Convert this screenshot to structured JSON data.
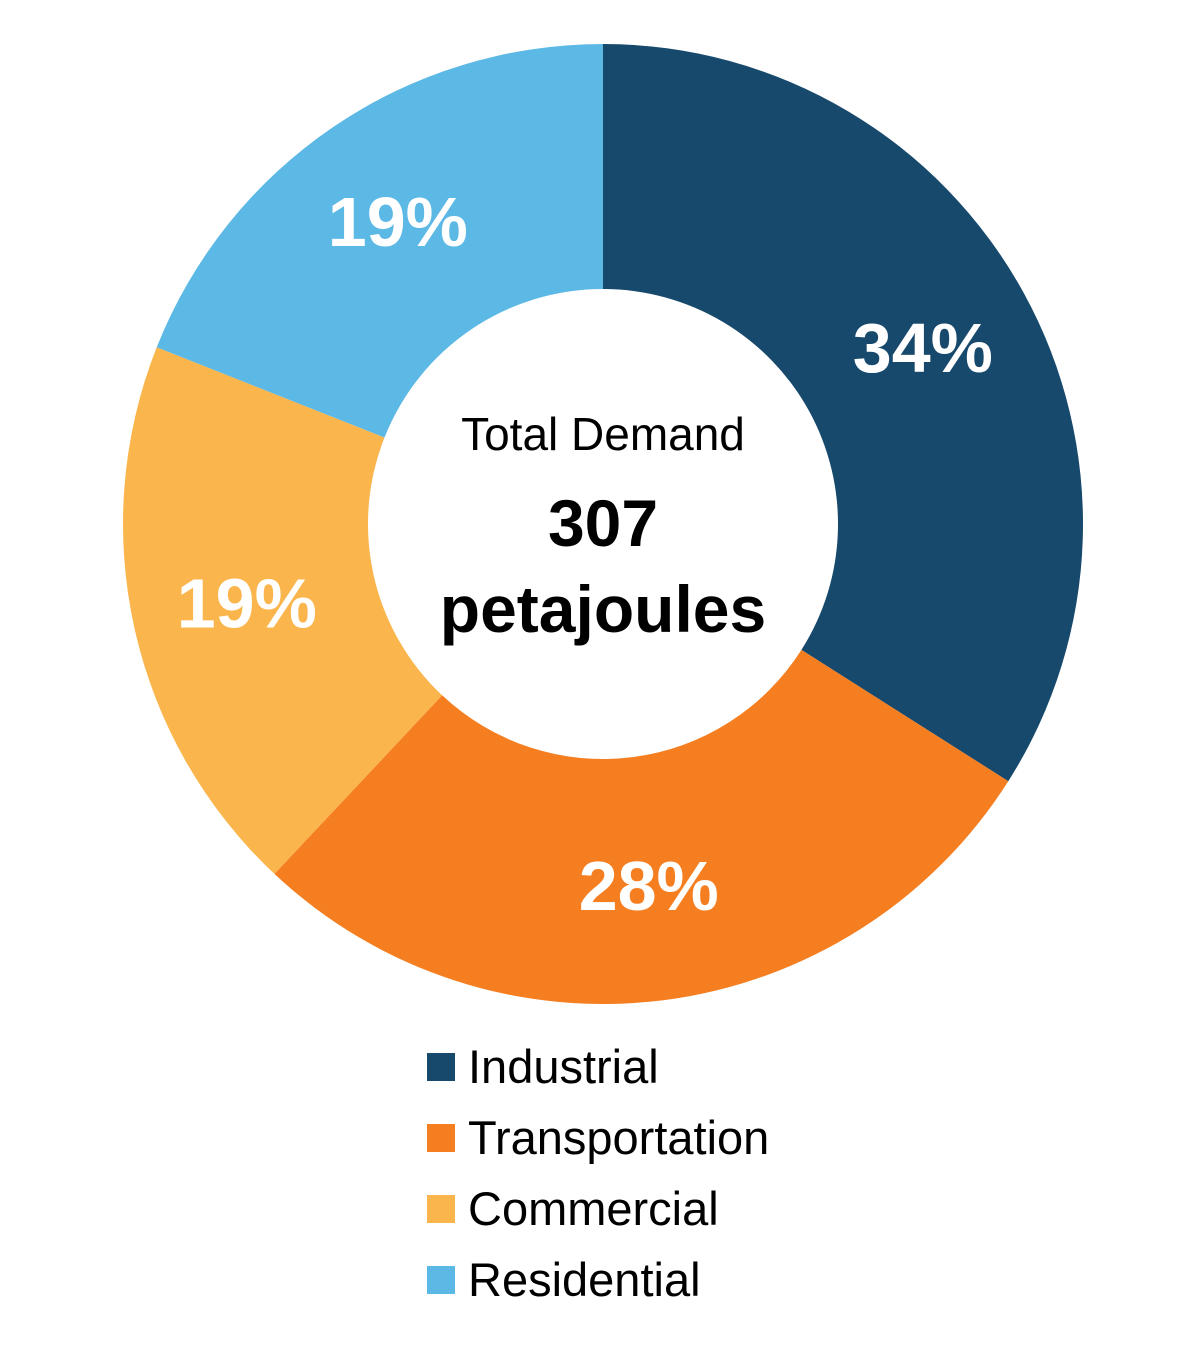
{
  "chart_data": {
    "type": "pie",
    "subtype": "donut",
    "categories": [
      "Industrial",
      "Transportation",
      "Commercial",
      "Residential"
    ],
    "values": [
      34,
      28,
      19,
      19
    ],
    "slice_labels": [
      "34%",
      "28%",
      "19%",
      "19%"
    ],
    "colors": [
      "#17496D",
      "#F57E20",
      "#FBB54D",
      "#5CB8E5"
    ],
    "slice_label_color": "#FFFFFF",
    "center": {
      "title": "Total Demand",
      "value": "307",
      "unit": "petajoules"
    },
    "start_angle_deg": 0,
    "direction": "clockwise",
    "legend_position": "bottom-left",
    "legend": [
      "Industrial",
      "Transportation",
      "Commercial",
      "Residential"
    ]
  }
}
